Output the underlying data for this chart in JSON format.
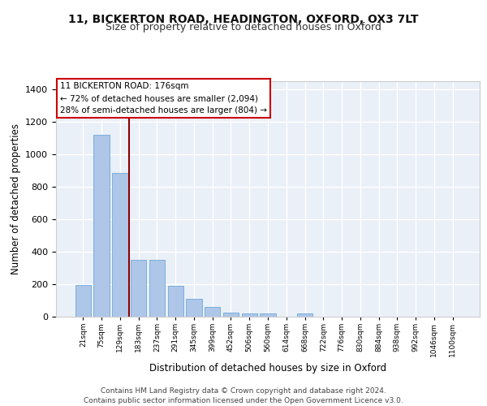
{
  "title1": "11, BICKERTON ROAD, HEADINGTON, OXFORD, OX3 7LT",
  "title2": "Size of property relative to detached houses in Oxford",
  "xlabel": "Distribution of detached houses by size in Oxford",
  "ylabel": "Number of detached properties",
  "categories": [
    "21sqm",
    "75sqm",
    "129sqm",
    "183sqm",
    "237sqm",
    "291sqm",
    "345sqm",
    "399sqm",
    "452sqm",
    "506sqm",
    "560sqm",
    "614sqm",
    "668sqm",
    "722sqm",
    "776sqm",
    "830sqm",
    "884sqm",
    "938sqm",
    "992sqm",
    "1046sqm",
    "1100sqm"
  ],
  "values": [
    195,
    1120,
    885,
    350,
    350,
    190,
    110,
    58,
    25,
    22,
    18,
    0,
    18,
    0,
    0,
    0,
    0,
    0,
    0,
    0,
    0
  ],
  "bar_color": "#aec6e8",
  "bar_edge_color": "#5a9fd4",
  "vline_color": "#8b0000",
  "annotation_text": "11 BICKERTON ROAD: 176sqm\n← 72% of detached houses are smaller (2,094)\n28% of semi-detached houses are larger (804) →",
  "annotation_box_color": "#ffffff",
  "annotation_box_edge_color": "#cc0000",
  "footer": "Contains HM Land Registry data © Crown copyright and database right 2024.\nContains public sector information licensed under the Open Government Licence v3.0.",
  "ylim": [
    0,
    1450
  ],
  "background_color": "#eaf0f8",
  "grid_color": "#ffffff",
  "title1_fontsize": 10,
  "title2_fontsize": 9,
  "xlabel_fontsize": 8.5,
  "ylabel_fontsize": 8.5,
  "footer_fontsize": 6.5
}
